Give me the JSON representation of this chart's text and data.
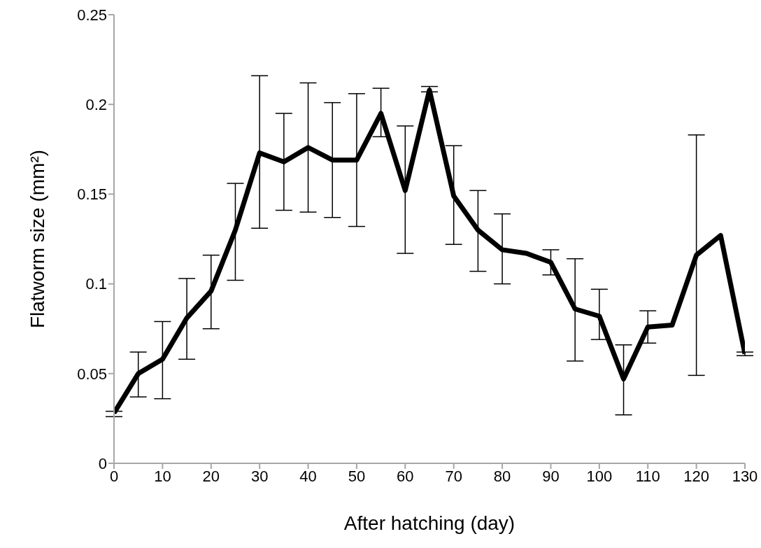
{
  "chart_data": {
    "type": "line",
    "xlabel": "After hatching (day)",
    "ylabel": "Flatworm size (mm²)",
    "x": [
      0,
      5,
      10,
      15,
      20,
      25,
      30,
      35,
      40,
      45,
      50,
      55,
      60,
      65,
      70,
      75,
      80,
      85,
      90,
      95,
      100,
      105,
      110,
      115,
      120,
      125,
      130
    ],
    "series": [
      {
        "color": "#000000",
        "values": [
          0.028,
          0.05,
          0.058,
          0.081,
          0.096,
          0.13,
          0.173,
          0.168,
          0.176,
          0.169,
          0.169,
          0.195,
          0.152,
          0.208,
          0.149,
          0.13,
          0.119,
          0.117,
          0.112,
          0.086,
          0.082,
          0.047,
          0.076,
          0.077,
          0.116,
          0.127,
          0.061
        ],
        "errors": [
          [
            0.026,
            0.029
          ],
          [
            0.037,
            0.062
          ],
          [
            0.036,
            0.079
          ],
          [
            0.058,
            0.103
          ],
          [
            0.075,
            0.116
          ],
          [
            0.102,
            0.156
          ],
          [
            0.131,
            0.216
          ],
          [
            0.141,
            0.195
          ],
          [
            0.14,
            0.212
          ],
          [
            0.137,
            0.201
          ],
          [
            0.132,
            0.206
          ],
          [
            0.182,
            0.209
          ],
          [
            0.117,
            0.188
          ],
          [
            0.207,
            0.21
          ],
          [
            0.122,
            0.177
          ],
          [
            0.107,
            0.152
          ],
          [
            0.1,
            0.139
          ],
          null,
          [
            0.105,
            0.119
          ],
          [
            0.057,
            0.114
          ],
          [
            0.069,
            0.097
          ],
          [
            0.027,
            0.066
          ],
          [
            0.067,
            0.085
          ],
          null,
          [
            0.049,
            0.183
          ],
          null,
          [
            0.06,
            0.062
          ]
        ]
      }
    ],
    "xlim": [
      0,
      130
    ],
    "xticks": [
      0,
      10,
      20,
      30,
      40,
      50,
      60,
      70,
      80,
      90,
      100,
      110,
      120,
      130
    ],
    "ylim": [
      0,
      0.25
    ],
    "yticks": [
      0,
      0.05,
      0.1,
      0.15,
      0.2,
      0.25
    ],
    "grid": false,
    "legend": false,
    "marker": "none",
    "line_style": "solid"
  }
}
